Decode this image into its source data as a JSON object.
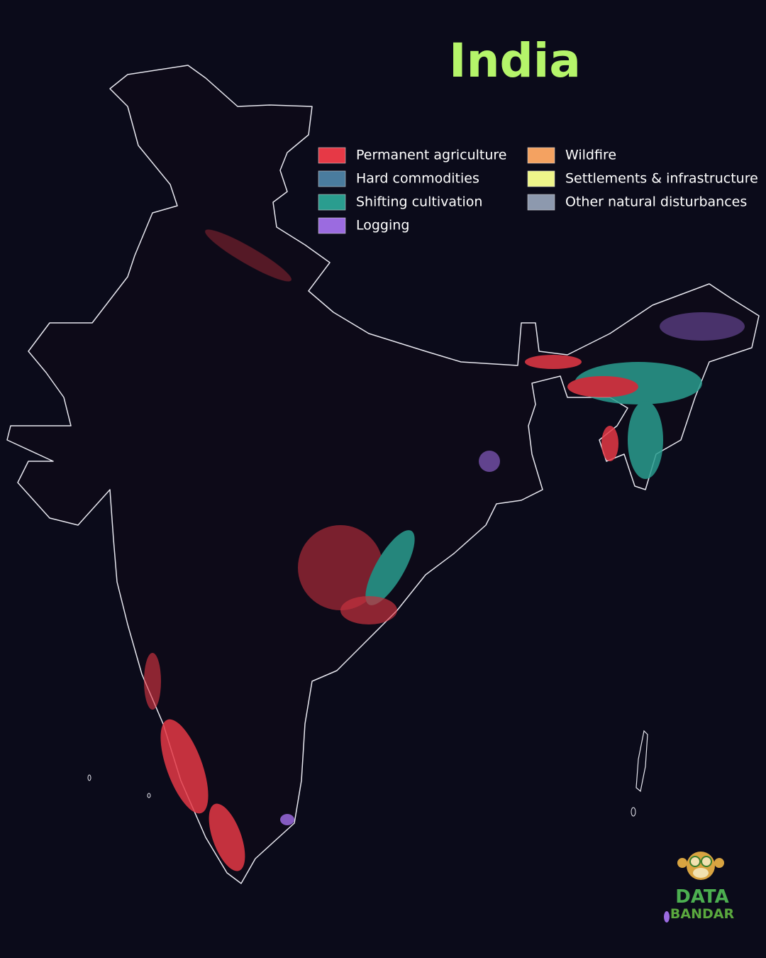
{
  "title": "India",
  "legend": {
    "items": [
      {
        "name": "Permanent agriculture",
        "color": "#e63946"
      },
      {
        "name": "Hard commodities",
        "color": "#4a7c9e"
      },
      {
        "name": "Shifting cultivation",
        "color": "#2a9d8f"
      },
      {
        "name": "Logging",
        "color": "#9b6be0"
      },
      {
        "name": "Wildfire",
        "color": "#f4a261"
      },
      {
        "name": "Settlements & infrastructure",
        "color": "#eef58a"
      },
      {
        "name": "Other natural disturbances",
        "color": "#8d99ae"
      }
    ]
  },
  "logo": {
    "line1": "DATA",
    "line2": "BANDAR"
  }
}
